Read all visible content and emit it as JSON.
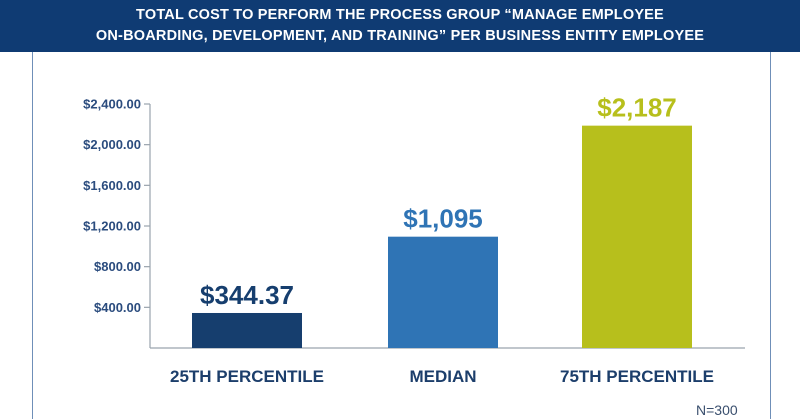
{
  "header": {
    "title_line1": "TOTAL COST TO PERFORM THE PROCESS GROUP “MANAGE EMPLOYEE",
    "title_line2": "ON-BOARDING, DEVELOPMENT, AND TRAINING” PER BUSINESS ENTITY EMPLOYEE"
  },
  "chart_data": {
    "type": "bar",
    "title": "TOTAL COST TO PERFORM THE PROCESS GROUP “MANAGE EMPLOYEE ON-BOARDING, DEVELOPMENT, AND TRAINING” PER BUSINESS ENTITY EMPLOYEE",
    "categories": [
      "25TH PERCENTILE",
      "MEDIAN",
      "75TH PERCENTILE"
    ],
    "values": [
      344.37,
      1095,
      2187
    ],
    "data_labels": [
      "$344.37",
      "$1,095",
      "$2,187"
    ],
    "colors": [
      "#163e6e",
      "#2f74b5",
      "#b7bf1c"
    ],
    "yticks": [
      400,
      800,
      1200,
      1600,
      2000,
      2400
    ],
    "ytick_labels": [
      "$400.00",
      "$800.00",
      "$1,200.00",
      "$1,600.00",
      "$2,000.00",
      "$2,400.00"
    ],
    "ylim": [
      0,
      2400
    ],
    "xlabel": "",
    "ylabel": "",
    "grid": false,
    "note": "N=300"
  }
}
